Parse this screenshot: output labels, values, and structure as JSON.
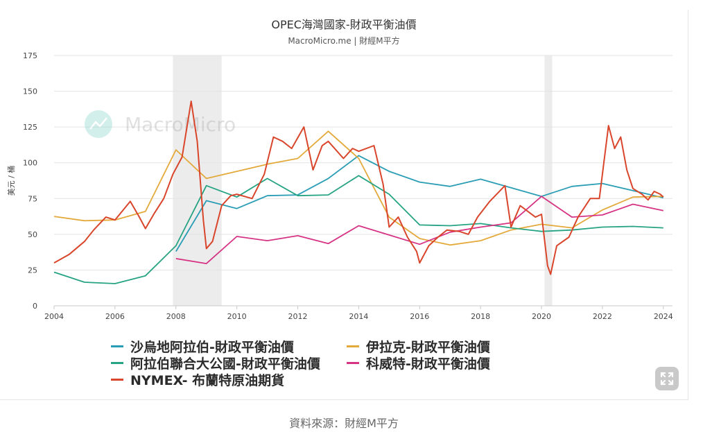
{
  "chart_data": {
    "type": "line",
    "title": "OPEC海灣國家-財政平衡油價",
    "subtitle": "MacroMicro.me | 財經M平方",
    "ylabel": "美元 / 桶",
    "xlabel": "",
    "xlim": [
      2004,
      2024.3
    ],
    "ylim": [
      0,
      175
    ],
    "x_ticks": [
      "2004",
      "2006",
      "2008",
      "2010",
      "2012",
      "2014",
      "2016",
      "2018",
      "2020",
      "2022",
      "2024"
    ],
    "y_ticks": [
      "0",
      "25",
      "50",
      "75",
      "100",
      "125",
      "150",
      "175"
    ],
    "grid": "horizontal",
    "legend_position": "bottom",
    "shaded_periods": [
      [
        2007.9,
        2009.5
      ],
      [
        2020.1,
        2020.35
      ]
    ],
    "series": [
      {
        "name": "沙烏地阿拉伯-財政平衡油價",
        "color": "#2a9db5",
        "points": [
          [
            2008,
            38
          ],
          [
            2009,
            73.5
          ],
          [
            2010,
            68
          ],
          [
            2011,
            77
          ],
          [
            2012,
            77.5
          ],
          [
            2013,
            89
          ],
          [
            2014,
            105
          ],
          [
            2015,
            94
          ],
          [
            2016,
            86.5
          ],
          [
            2017,
            83.5
          ],
          [
            2018,
            88.5
          ],
          [
            2019,
            82.5
          ],
          [
            2020,
            76.5
          ],
          [
            2021,
            83.5
          ],
          [
            2022,
            85.5
          ],
          [
            2023,
            80.5
          ],
          [
            2024,
            75.5
          ]
        ]
      },
      {
        "name": "伊拉克-財政平衡油價",
        "color": "#e3a93a",
        "points": [
          [
            2004,
            62.5
          ],
          [
            2005,
            59.5
          ],
          [
            2006,
            60
          ],
          [
            2007,
            66
          ],
          [
            2008,
            109
          ],
          [
            2009,
            89
          ],
          [
            2010,
            94
          ],
          [
            2011,
            99
          ],
          [
            2012,
            103
          ],
          [
            2013,
            122
          ],
          [
            2014,
            103
          ],
          [
            2015,
            62
          ],
          [
            2016,
            47
          ],
          [
            2017,
            42.5
          ],
          [
            2018,
            45.5
          ],
          [
            2019,
            53
          ],
          [
            2020,
            57
          ],
          [
            2021,
            54.5
          ],
          [
            2022,
            67
          ],
          [
            2023,
            76
          ],
          [
            2024,
            76.5
          ]
        ]
      },
      {
        "name": "阿拉伯聯合大公國-財政平衡油價",
        "color": "#26a383",
        "points": [
          [
            2004,
            23.5
          ],
          [
            2005,
            16.5
          ],
          [
            2006,
            15.5
          ],
          [
            2007,
            21
          ],
          [
            2008,
            42
          ],
          [
            2009,
            84
          ],
          [
            2010,
            76
          ],
          [
            2011,
            89
          ],
          [
            2012,
            77
          ],
          [
            2013,
            77.5
          ],
          [
            2014,
            91
          ],
          [
            2015,
            78
          ],
          [
            2016,
            56.5
          ],
          [
            2017,
            56
          ],
          [
            2018,
            57.5
          ],
          [
            2019,
            54.5
          ],
          [
            2020,
            52
          ],
          [
            2021,
            53
          ],
          [
            2022,
            55
          ],
          [
            2023,
            55.5
          ],
          [
            2024,
            54.5
          ]
        ]
      },
      {
        "name": "科威特-財政平衡油價",
        "color": "#d63384",
        "points": [
          [
            2008,
            33
          ],
          [
            2009,
            29.5
          ],
          [
            2010,
            48.5
          ],
          [
            2011,
            45.5
          ],
          [
            2012,
            49
          ],
          [
            2013,
            43.5
          ],
          [
            2014,
            56
          ],
          [
            2015,
            49.5
          ],
          [
            2016,
            43
          ],
          [
            2017,
            51.5
          ],
          [
            2018,
            55
          ],
          [
            2019,
            58
          ],
          [
            2020,
            76.5
          ],
          [
            2021,
            62
          ],
          [
            2022,
            63.5
          ],
          [
            2023,
            71
          ],
          [
            2024,
            66.5
          ]
        ]
      },
      {
        "name": "NYMEX- 布蘭特原油期貨",
        "color": "#d9452b",
        "points": [
          [
            2004,
            30
          ],
          [
            2004.5,
            36
          ],
          [
            2005,
            45
          ],
          [
            2005.3,
            53
          ],
          [
            2005.7,
            62
          ],
          [
            2006,
            60
          ],
          [
            2006.5,
            73
          ],
          [
            2006.8,
            62
          ],
          [
            2007,
            54
          ],
          [
            2007.3,
            65
          ],
          [
            2007.6,
            75
          ],
          [
            2007.9,
            92
          ],
          [
            2008.2,
            104
          ],
          [
            2008.5,
            143
          ],
          [
            2008.7,
            115
          ],
          [
            2008.9,
            60
          ],
          [
            2009.0,
            40
          ],
          [
            2009.2,
            45
          ],
          [
            2009.5,
            70
          ],
          [
            2009.8,
            77
          ],
          [
            2010,
            78
          ],
          [
            2010.5,
            75
          ],
          [
            2010.9,
            92
          ],
          [
            2011.2,
            118
          ],
          [
            2011.5,
            115
          ],
          [
            2011.8,
            110
          ],
          [
            2012.2,
            125
          ],
          [
            2012.5,
            95
          ],
          [
            2012.8,
            112
          ],
          [
            2013,
            115
          ],
          [
            2013.5,
            103
          ],
          [
            2013.8,
            110
          ],
          [
            2014,
            108
          ],
          [
            2014.5,
            112
          ],
          [
            2014.8,
            85
          ],
          [
            2015,
            55
          ],
          [
            2015.3,
            62
          ],
          [
            2015.6,
            48
          ],
          [
            2015.9,
            38
          ],
          [
            2016,
            30
          ],
          [
            2016.3,
            42
          ],
          [
            2016.6,
            48
          ],
          [
            2016.9,
            53
          ],
          [
            2017.3,
            52
          ],
          [
            2017.6,
            50
          ],
          [
            2017.9,
            62
          ],
          [
            2018.3,
            73
          ],
          [
            2018.8,
            84
          ],
          [
            2019,
            55
          ],
          [
            2019.3,
            70
          ],
          [
            2019.8,
            62
          ],
          [
            2020,
            64
          ],
          [
            2020.2,
            28
          ],
          [
            2020.3,
            22
          ],
          [
            2020.5,
            42
          ],
          [
            2020.9,
            48
          ],
          [
            2021.2,
            62
          ],
          [
            2021.6,
            75
          ],
          [
            2021.9,
            75
          ],
          [
            2022.2,
            126
          ],
          [
            2022.4,
            110
          ],
          [
            2022.6,
            118
          ],
          [
            2022.8,
            95
          ],
          [
            2023,
            82
          ],
          [
            2023.3,
            78
          ],
          [
            2023.5,
            74
          ],
          [
            2023.7,
            80
          ],
          [
            2023.9,
            78
          ],
          [
            2024,
            76
          ]
        ]
      }
    ]
  },
  "legend": [
    {
      "label": "沙烏地阿拉伯-財政平衡油價",
      "color": "#2a9db5"
    },
    {
      "label": "伊拉克-財政平衡油價",
      "color": "#e3a93a"
    },
    {
      "label": "阿拉伯聯合大公國-財政平衡油價",
      "color": "#26a383"
    },
    {
      "label": "科威特-財政平衡油價",
      "color": "#d63384"
    },
    {
      "label": "NYMEX- 布蘭特原油期貨",
      "color": "#d9452b"
    }
  ],
  "watermark": "MacroMicro",
  "source_text": "資料來源：財經M平方",
  "expand_icon": "expand-icon"
}
